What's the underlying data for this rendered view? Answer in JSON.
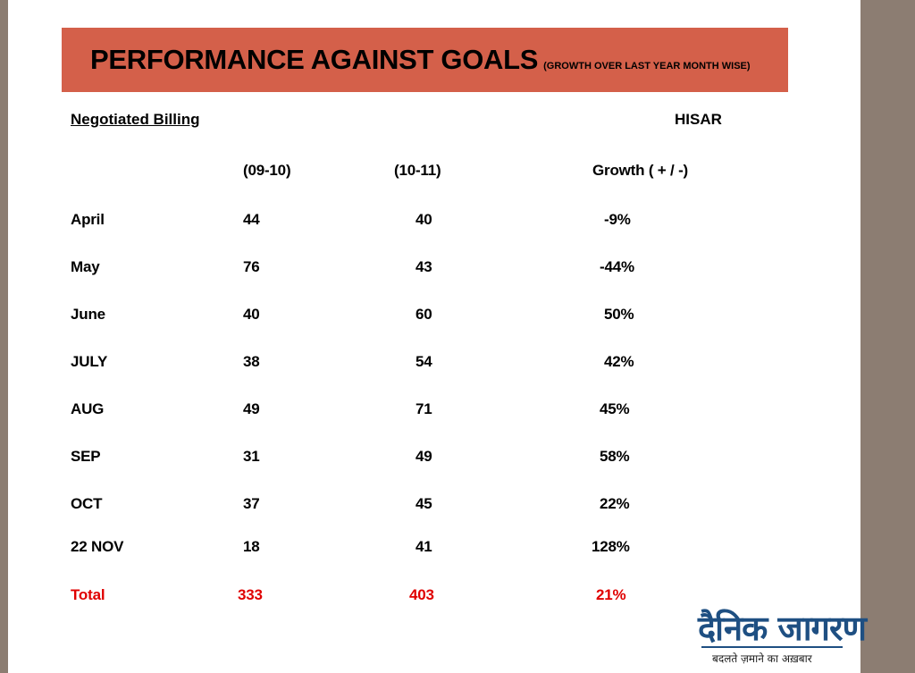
{
  "title": "PERFORMANCE AGAINST GOALS",
  "subtitle": "(GROWTH OVER LAST YEAR MONTH WISE)",
  "subject": "Negotiated Billing",
  "city": "HISAR",
  "headers": {
    "col1": "(09-10)",
    "col2": "(10-11)",
    "col3": "Growth ( + / -)"
  },
  "rows": [
    {
      "month": "April",
      "y0910": "44",
      "y1011": "40",
      "growth": "-9%"
    },
    {
      "month": "May",
      "y0910": "76",
      "y1011": "43",
      "growth": "-44%"
    },
    {
      "month": "June",
      "y0910": "40",
      "y1011": "60",
      "growth": "50%"
    },
    {
      "month": "JULY",
      "y0910": "38",
      "y1011": "54",
      "growth": "42%"
    },
    {
      "month": "AUG",
      "y0910": "49",
      "y1011": "71",
      "growth": "45%"
    },
    {
      "month": "SEP",
      "y0910": "31",
      "y1011": "49",
      "growth": "58%"
    },
    {
      "month": "OCT",
      "y0910": "37",
      "y1011": "45",
      "growth": "22%"
    },
    {
      "month": "22 NOV",
      "y0910": "18",
      "y1011": "41",
      "growth": "128%"
    }
  ],
  "total": {
    "label": "Total",
    "y0910": "333",
    "y1011": "403",
    "growth": "21%"
  },
  "logo": {
    "name": "दैनिक जागरण",
    "tagline": "बदलते ज़माने का अख़बार"
  },
  "colors": {
    "banner": "#d4604a",
    "total_text": "#e00000",
    "logo": "#1e4f82",
    "side_bar": "#8c7d72"
  }
}
